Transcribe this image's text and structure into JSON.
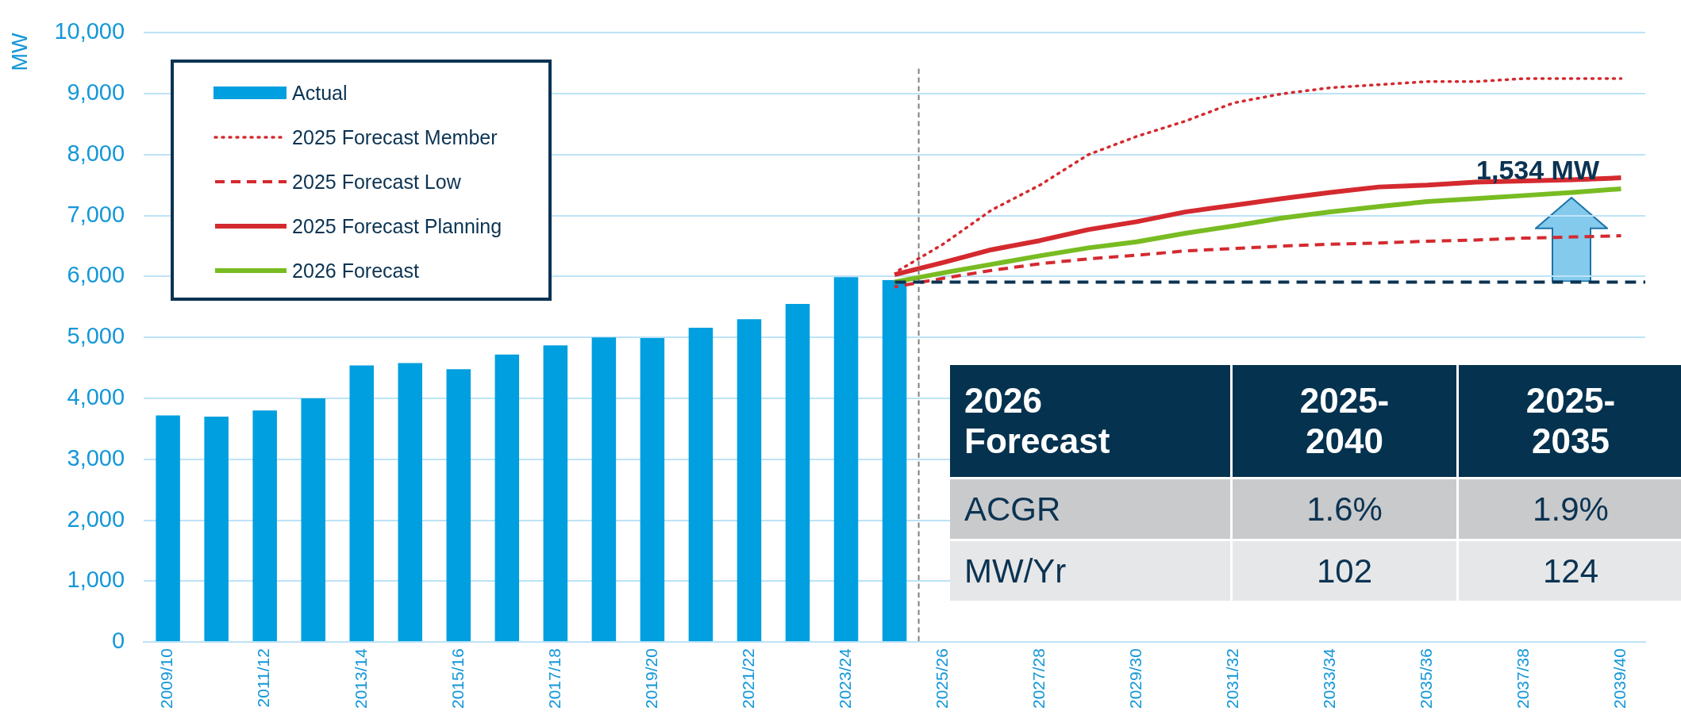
{
  "chart_data": [
    {
      "type": "bar",
      "ylabel": "MW",
      "categories": [
        "2009/10",
        null,
        "2011/12",
        null,
        "2013/14",
        null,
        "2015/16",
        null,
        "2017/18",
        null,
        "2019/20",
        null,
        "2021/22",
        null,
        "2023/24",
        null,
        "2025/26",
        null,
        "2027/28",
        null,
        "2029/30",
        null,
        "2031/32",
        null,
        "2033/34",
        null,
        "2035/36",
        null,
        "2037/38",
        null,
        "2039/40"
      ],
      "series": [
        {
          "name": "Actual",
          "type": "bar",
          "color": "#009fdf",
          "values": [
            3720,
            3700,
            3800,
            4000,
            4540,
            4580,
            4480,
            4720,
            4870,
            5000,
            4990,
            5160,
            5300,
            5550,
            5990,
            5940,
            null,
            null,
            null,
            null,
            null,
            null,
            null,
            null,
            null,
            null,
            null,
            null,
            null,
            null,
            null
          ]
        },
        {
          "name": "2025 Forecast Member",
          "type": "line",
          "line_style": "dotted",
          "color": "#d42a2f",
          "values": [
            null,
            null,
            null,
            null,
            null,
            null,
            null,
            null,
            null,
            null,
            null,
            null,
            null,
            null,
            null,
            6060,
            6530,
            7090,
            7500,
            8000,
            8300,
            8550,
            8850,
            9000,
            9100,
            9150,
            9200,
            9200,
            9250,
            9250,
            9250
          ]
        },
        {
          "name": "2025 Forecast Low",
          "type": "line",
          "line_style": "dashed",
          "color": "#d42a2f",
          "values": [
            null,
            null,
            null,
            null,
            null,
            null,
            null,
            null,
            null,
            null,
            null,
            null,
            null,
            null,
            null,
            5830,
            5970,
            6100,
            6210,
            6290,
            6350,
            6420,
            6460,
            6500,
            6530,
            6550,
            6580,
            6600,
            6630,
            6650,
            6670
          ]
        },
        {
          "name": "2025 Forecast Planning",
          "type": "line",
          "line_style": "solid",
          "color": "#d42a2f",
          "values": [
            null,
            null,
            null,
            null,
            null,
            null,
            null,
            null,
            null,
            null,
            null,
            null,
            null,
            null,
            null,
            6030,
            6230,
            6440,
            6590,
            6770,
            6900,
            7060,
            7170,
            7280,
            7380,
            7470,
            7500,
            7550,
            7570,
            7590,
            7620
          ]
        },
        {
          "name": "2026 Forecast",
          "type": "line",
          "line_style": "solid",
          "color": "#78bc22",
          "values": [
            null,
            null,
            null,
            null,
            null,
            null,
            null,
            null,
            null,
            null,
            null,
            null,
            null,
            null,
            null,
            5910,
            6060,
            6200,
            6340,
            6470,
            6570,
            6710,
            6830,
            6960,
            7060,
            7150,
            7230,
            7280,
            7330,
            7380,
            7440
          ]
        }
      ],
      "ylim": [
        0,
        10000
      ],
      "yticks": [
        {
          "value": 0,
          "label": "0"
        },
        {
          "value": 1000,
          "label": "1,000"
        },
        {
          "value": 2000,
          "label": "2,000"
        },
        {
          "value": 3000,
          "label": "3,000"
        },
        {
          "value": 4000,
          "label": "4,000"
        },
        {
          "value": 5000,
          "label": "5,000"
        },
        {
          "value": 6000,
          "label": "6,000"
        },
        {
          "value": 7000,
          "label": "7,000"
        },
        {
          "value": 8000,
          "label": "8,000"
        },
        {
          "value": 9000,
          "label": "9,000"
        },
        {
          "value": 10000,
          "label": "10,000"
        }
      ],
      "grid": "y",
      "legend": "top left",
      "ref_lines": [
        {
          "axis": "x",
          "value": "2025/26",
          "color": "#808080",
          "line_style": "dashed"
        },
        {
          "axis": "y",
          "value": 5910,
          "color": "#0b3352",
          "line_style": "dashed"
        }
      ],
      "annotations": [
        "1,534 MW"
      ]
    },
    {
      "type": "other",
      "annotations": [
        "2026 Forecast",
        "2025-2040",
        "2025-2035",
        "ACGR",
        "1.6%",
        "1.9%",
        "MW/Yr",
        "102",
        "124"
      ]
    }
  ]
}
